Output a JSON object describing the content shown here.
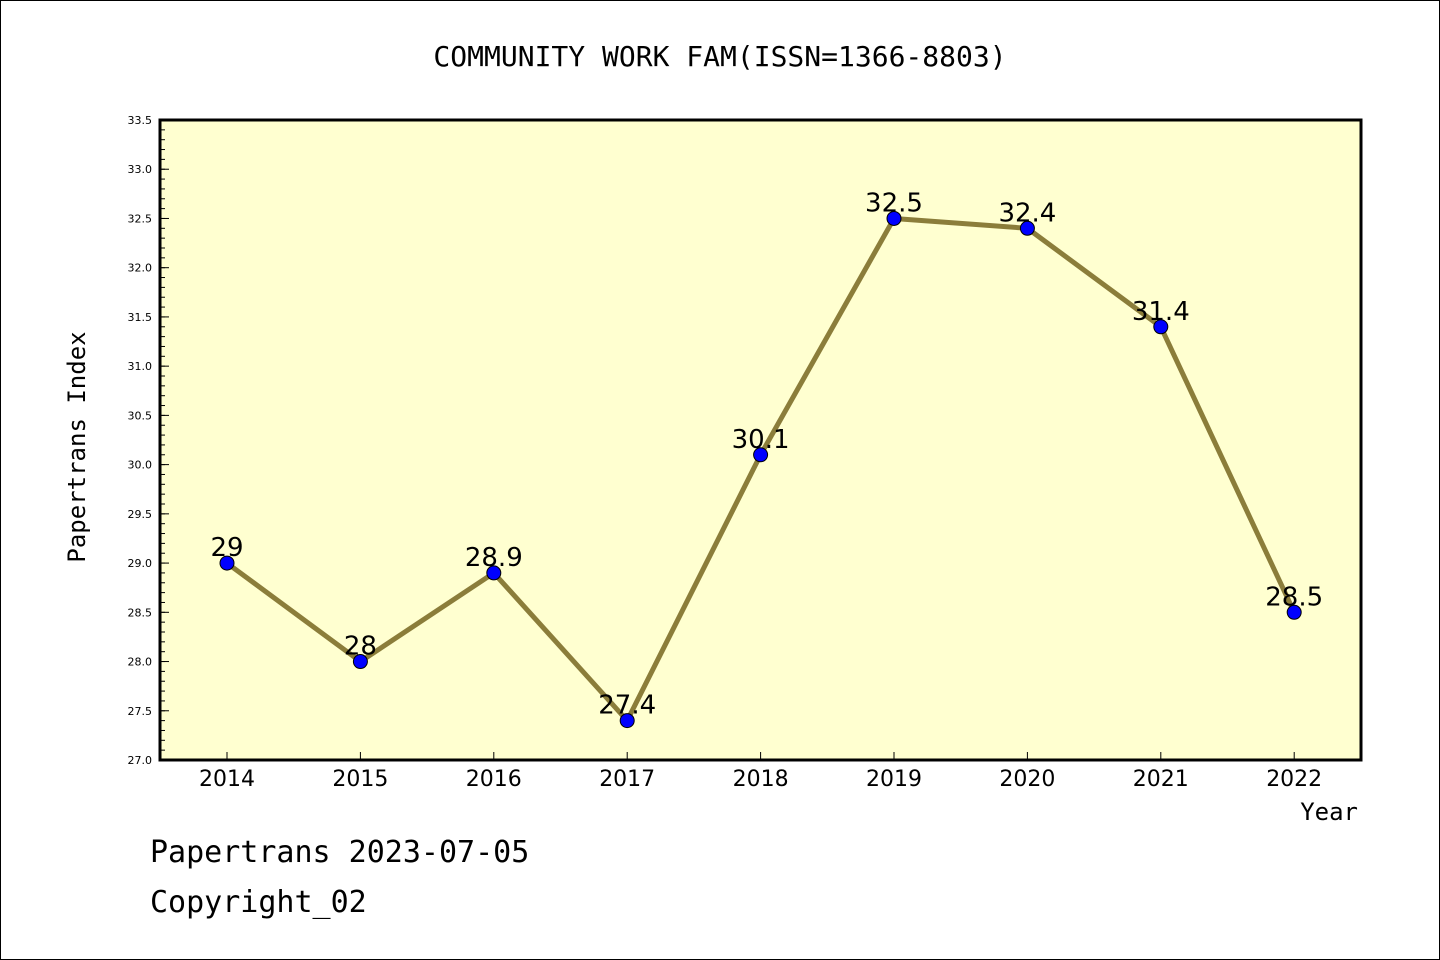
{
  "chart_data": {
    "type": "line",
    "title": "COMMUNITY WORK FAM(ISSN=1366-8803)",
    "xlabel": "Year",
    "ylabel": "Papertrans Index",
    "x": [
      "2014",
      "2015",
      "2016",
      "2017",
      "2018",
      "2019",
      "2020",
      "2021",
      "2022"
    ],
    "series": [
      {
        "values": [
          29,
          28,
          28.9,
          27.4,
          30.1,
          32.5,
          32.4,
          31.4,
          28.5
        ],
        "data_labels": [
          "29",
          "28",
          "28.9",
          "27.4",
          "30.1",
          "32.5",
          "32.4",
          "31.4",
          "28.5"
        ]
      }
    ],
    "ylim": [
      27.0,
      33.5
    ],
    "yticks": [
      "27.0",
      "27.5",
      "28.0",
      "28.5",
      "29.0",
      "29.5",
      "30.0",
      "30.5",
      "31.0",
      "31.5",
      "32.0",
      "32.5",
      "33.0",
      "33.5"
    ],
    "grid": false,
    "colors": {
      "plot_background": "#ffffd0",
      "line": "#8b7d3a",
      "marker": "#0000ff"
    }
  },
  "footer": {
    "line1": "Papertrans 2023-07-05",
    "line2": "Copyright_02"
  }
}
